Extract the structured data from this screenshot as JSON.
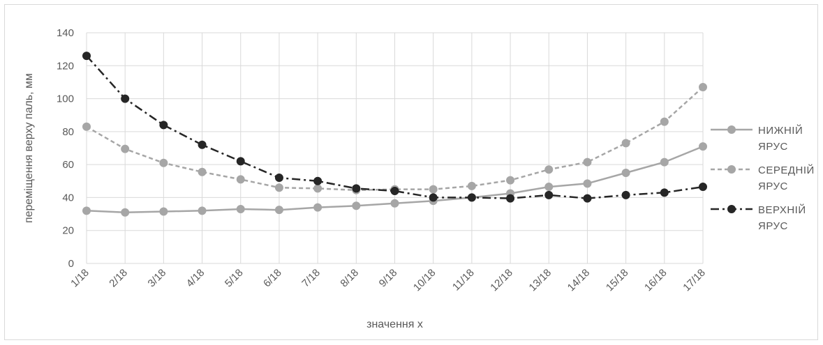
{
  "chart_data": {
    "type": "line",
    "title": "",
    "xlabel": "значення х",
    "ylabel": "переміщення верху паль, мм",
    "ylim": [
      0,
      140
    ],
    "yticks": [
      0,
      20,
      40,
      60,
      80,
      100,
      120,
      140
    ],
    "grid": "vertical and horizontal",
    "legend_position": "right",
    "categories": [
      "1/18",
      "2/18",
      "3/18",
      "4/18",
      "5/18",
      "6/18",
      "7/18",
      "8/18",
      "9/18",
      "10/18",
      "11/18",
      "12/18",
      "13/18",
      "14/18",
      "15/18",
      "16/18",
      "17/18"
    ],
    "series": [
      {
        "name": "НИЖНІЙ ЯРУС",
        "name_lines": [
          "НИЖНІЙ",
          "ЯРУС"
        ],
        "color": "#a6a6a6",
        "dash": "solid",
        "values": [
          32,
          31,
          31.5,
          32,
          33,
          32.5,
          34,
          35,
          36.5,
          38,
          40,
          42.5,
          46.5,
          48.5,
          55,
          61.5,
          71
        ]
      },
      {
        "name": "СЕРЕДНІЙ ЯРУС",
        "name_lines": [
          "СЕРЕДНІЙ",
          "ЯРУС"
        ],
        "color": "#a6a6a6",
        "dash": "dashed",
        "values": [
          83,
          69.5,
          61,
          55.5,
          51,
          46,
          45.5,
          44.5,
          45,
          45,
          47,
          50.5,
          57,
          61.5,
          73,
          86,
          107
        ]
      },
      {
        "name": "ВЕРХНІЙ ЯРУС",
        "name_lines": [
          "ВЕРХНІЙ",
          "ЯРУС"
        ],
        "color": "#262626",
        "dash": "dash-dot",
        "values": [
          126,
          100,
          84,
          72,
          62,
          52,
          50,
          45.5,
          44,
          40,
          40,
          39.5,
          41.5,
          39.5,
          41.5,
          43,
          46.5
        ]
      }
    ]
  }
}
